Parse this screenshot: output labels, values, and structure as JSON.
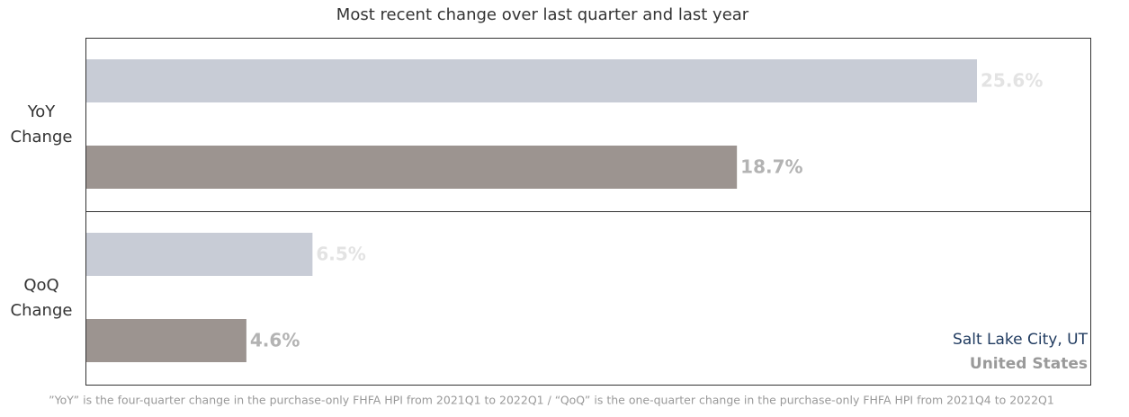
{
  "chart_data": {
    "type": "bar",
    "orientation": "horizontal",
    "title": "Most recent change over last quarter and last year",
    "categories": [
      "YoY Change",
      "QoQ Change"
    ],
    "series": [
      {
        "name": "Salt Lake City, UT",
        "color": "#c8ccd6",
        "legend_color": "#1f3a5f",
        "label_color": "#e3e3e3",
        "values": [
          25.6,
          6.5
        ],
        "value_labels": [
          "25.6%",
          "6.5%"
        ]
      },
      {
        "name": "United States",
        "color": "#9c9490",
        "legend_color": "#9a9a9a",
        "label_color": "#b3b3b3",
        "values": [
          18.7,
          4.6
        ],
        "value_labels": [
          "18.7%",
          "4.6%"
        ]
      }
    ],
    "footnote": "”YoY” is the four-quarter change in the purchase-only FHFA HPI from 2021Q1 to 2022Q1 / “QoQ” is the one-quarter change in the purchase-only FHFA HPI from 2021Q4 to 2022Q1",
    "legend": "bottom-right"
  }
}
